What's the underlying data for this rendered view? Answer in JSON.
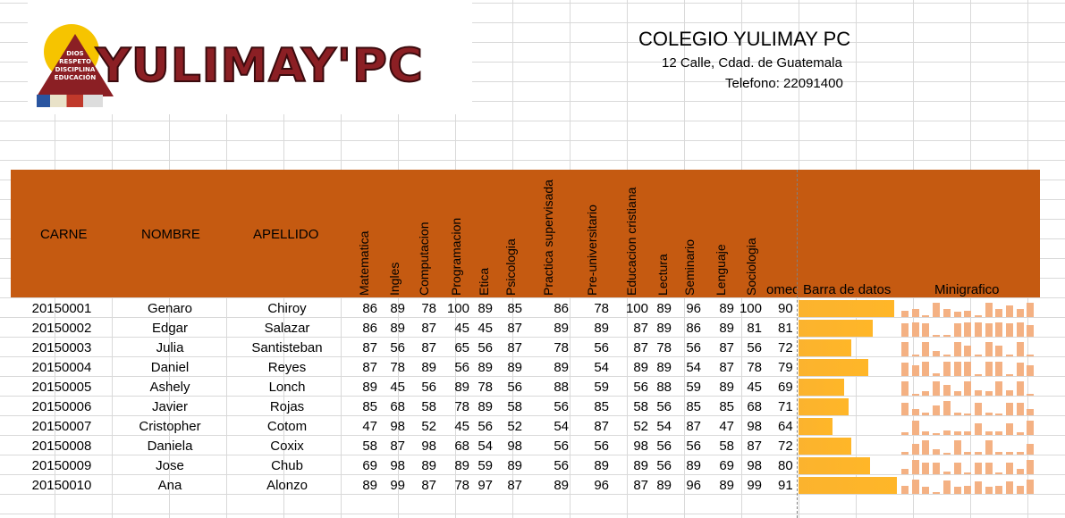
{
  "school": {
    "logo_text": "YULIMAY'PC",
    "motto": [
      "DIOS",
      "RESPETO",
      "DISCIPLINA",
      "EDUCACIÓN"
    ],
    "name": "COLEGIO YULIMAY PC",
    "address": "12 Calle, Cdad. de Guatemala",
    "phone": "Telefono: 22091400"
  },
  "colors": {
    "header_band": "#c55a11",
    "data_bar": "#ffb628",
    "sparkline": "#f4b183"
  },
  "headers": {
    "carne": "CARNE",
    "nombre": "NOMBRE",
    "apellido": "APELLIDO",
    "subjects": [
      "Matematica",
      "Ingles",
      "Computacion",
      "Programacion",
      "Etica",
      "Psicologia",
      "Practica supervisada",
      "Pre-universitario",
      "Educacion cristiana",
      "Lectura",
      "Seminario",
      "Lenguaje",
      "Sociologia"
    ],
    "promedio": "omed",
    "barra": "Barra de datos",
    "minigrafico": "Minigrafico"
  },
  "students": [
    {
      "carne": "20150001",
      "nombre": "Genaro",
      "apellido": "Chiroy",
      "grades": [
        86,
        89,
        78,
        100,
        89,
        85,
        86,
        78,
        100,
        89,
        96,
        89,
        100
      ],
      "promedio": "90"
    },
    {
      "carne": "20150002",
      "nombre": "Edgar",
      "apellido": "Salazar",
      "grades": [
        86,
        89,
        87,
        45,
        45,
        87,
        89,
        89,
        87,
        89,
        86,
        89,
        81
      ],
      "promedio": "81"
    },
    {
      "carne": "20150003",
      "nombre": "Julia",
      "apellido": "Santisteban",
      "grades": [
        87,
        56,
        87,
        65,
        56,
        87,
        78,
        56,
        87,
        78,
        56,
        87,
        56
      ],
      "promedio": "72"
    },
    {
      "carne": "20150004",
      "nombre": "Daniel",
      "apellido": "Reyes",
      "grades": [
        87,
        78,
        89,
        56,
        89,
        89,
        89,
        54,
        89,
        89,
        54,
        87,
        78
      ],
      "promedio": "79"
    },
    {
      "carne": "20150005",
      "nombre": "Ashely",
      "apellido": "Lonch",
      "grades": [
        89,
        45,
        56,
        89,
        78,
        56,
        88,
        59,
        56,
        88,
        59,
        89,
        45
      ],
      "promedio": "69"
    },
    {
      "carne": "20150006",
      "nombre": "Javier",
      "apellido": "Rojas",
      "grades": [
        85,
        68,
        58,
        78,
        89,
        58,
        56,
        85,
        58,
        56,
        85,
        85,
        68
      ],
      "promedio": "71"
    },
    {
      "carne": "20150007",
      "nombre": "Cristopher",
      "apellido": "Cotom",
      "grades": [
        47,
        98,
        52,
        45,
        56,
        52,
        54,
        87,
        52,
        54,
        87,
        47,
        98
      ],
      "promedio": "64"
    },
    {
      "carne": "20150008",
      "nombre": "Daniela",
      "apellido": "Coxix",
      "grades": [
        58,
        87,
        98,
        68,
        54,
        98,
        56,
        56,
        98,
        56,
        56,
        58,
        87
      ],
      "promedio": "72"
    },
    {
      "carne": "20150009",
      "nombre": "Jose",
      "apellido": "Chub",
      "grades": [
        69,
        98,
        89,
        89,
        59,
        89,
        56,
        89,
        89,
        56,
        89,
        69,
        98
      ],
      "promedio": "80"
    },
    {
      "carne": "20150010",
      "nombre": "Ana",
      "apellido": "Alonzo",
      "grades": [
        89,
        99,
        87,
        78,
        97,
        87,
        89,
        96,
        87,
        89,
        96,
        89,
        99
      ],
      "promedio": "91"
    }
  ]
}
